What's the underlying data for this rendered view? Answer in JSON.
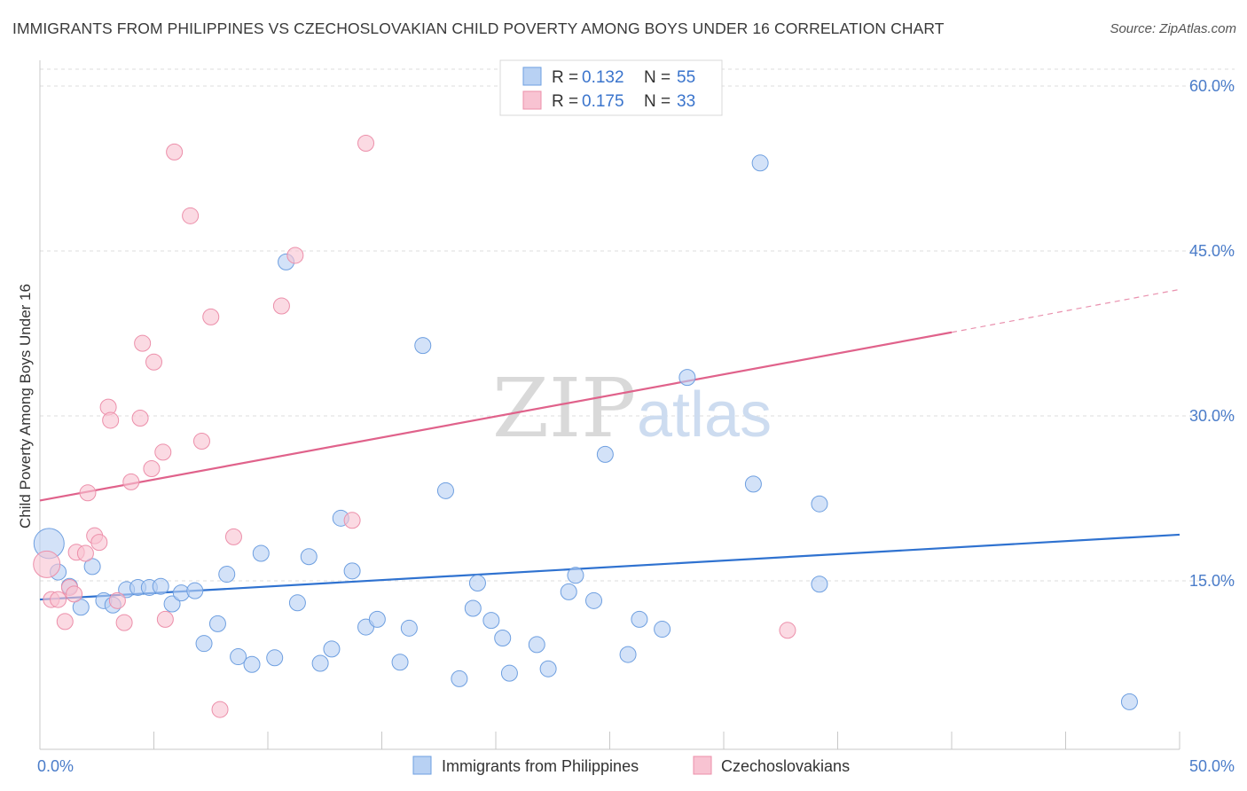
{
  "title": "IMMIGRANTS FROM PHILIPPINES VS CZECHOSLOVAKIAN CHILD POVERTY AMONG BOYS UNDER 16 CORRELATION CHART",
  "source": "Source: ZipAtlas.com",
  "watermark": {
    "part1": "ZIP",
    "part2": "atlas"
  },
  "colors": {
    "blue_fill": "#b8d1f3",
    "blue_stroke": "#6e9fe0",
    "blue_line": "#2f72d0",
    "pink_fill": "#f8c3d2",
    "pink_stroke": "#ec8faa",
    "pink_line": "#e0628b",
    "grid": "#dcdcdc",
    "tick_text": "#4a7cc9"
  },
  "legend": {
    "rows": [
      {
        "r_label": "R =",
        "r_value": "0.132",
        "n_label": "N =",
        "n_value": "55"
      },
      {
        "r_label": "R =",
        "r_value": "0.175",
        "n_label": "N =",
        "n_value": "33"
      }
    ]
  },
  "chart_data": {
    "type": "scatter",
    "title": "IMMIGRANTS FROM PHILIPPINES VS CZECHOSLOVAKIAN CHILD POVERTY AMONG BOYS UNDER 16 CORRELATION CHART",
    "xlabel": "",
    "ylabel": "Child Poverty Among Boys Under 16",
    "xlim": [
      0,
      50
    ],
    "ylim": [
      0,
      60
    ],
    "x_tick_labels": [
      "0.0%",
      "50.0%"
    ],
    "y_tick_labels": [
      "15.0%",
      "30.0%",
      "45.0%",
      "60.0%"
    ],
    "y_ticks": [
      15,
      30,
      45,
      60
    ],
    "x_ticks_minor": [
      0,
      5,
      10,
      15,
      20,
      25,
      30,
      35,
      40,
      45,
      50
    ],
    "grid": true,
    "legend_position": "top-center",
    "series": [
      {
        "name": "Immigrants from Philippines",
        "color": "blue",
        "R": 0.132,
        "N": 55,
        "trend": {
          "x": [
            0,
            50
          ],
          "y": [
            13.3,
            19.2
          ]
        },
        "points": [
          [
            0.4,
            18.4
          ],
          [
            0.8,
            15.8
          ],
          [
            1.3,
            14.5
          ],
          [
            1.8,
            12.6
          ],
          [
            2.3,
            16.3
          ],
          [
            2.8,
            13.2
          ],
          [
            3.2,
            12.8
          ],
          [
            3.8,
            14.2
          ],
          [
            4.3,
            14.4
          ],
          [
            4.8,
            14.4
          ],
          [
            5.3,
            14.5
          ],
          [
            5.8,
            12.9
          ],
          [
            6.2,
            13.9
          ],
          [
            6.8,
            14.1
          ],
          [
            7.2,
            9.3
          ],
          [
            7.8,
            11.1
          ],
          [
            8.2,
            15.6
          ],
          [
            8.7,
            8.1
          ],
          [
            9.3,
            7.4
          ],
          [
            9.7,
            17.5
          ],
          [
            10.3,
            8.0
          ],
          [
            10.8,
            44.0
          ],
          [
            11.3,
            13.0
          ],
          [
            11.8,
            17.2
          ],
          [
            12.3,
            7.5
          ],
          [
            12.8,
            8.8
          ],
          [
            13.2,
            20.7
          ],
          [
            13.7,
            15.9
          ],
          [
            14.3,
            10.8
          ],
          [
            14.8,
            11.5
          ],
          [
            15.8,
            7.6
          ],
          [
            16.2,
            10.7
          ],
          [
            16.8,
            36.4
          ],
          [
            17.8,
            23.2
          ],
          [
            18.4,
            6.1
          ],
          [
            19.0,
            12.5
          ],
          [
            19.2,
            14.8
          ],
          [
            19.8,
            11.4
          ],
          [
            20.3,
            9.8
          ],
          [
            20.6,
            6.6
          ],
          [
            21.8,
            9.2
          ],
          [
            22.3,
            7.0
          ],
          [
            23.2,
            14.0
          ],
          [
            23.5,
            15.5
          ],
          [
            24.3,
            13.2
          ],
          [
            24.8,
            26.5
          ],
          [
            25.8,
            8.3
          ],
          [
            26.3,
            11.5
          ],
          [
            27.3,
            10.6
          ],
          [
            28.4,
            33.5
          ],
          [
            31.6,
            53.0
          ],
          [
            31.3,
            23.8
          ],
          [
            34.2,
            22.0
          ],
          [
            34.2,
            14.7
          ],
          [
            47.8,
            4.0
          ]
        ]
      },
      {
        "name": "Czechoslovakians",
        "color": "pink",
        "R": 0.175,
        "N": 33,
        "trend": {
          "x": [
            0,
            40
          ],
          "y": [
            22.3,
            37.6
          ]
        },
        "trend_dashed": {
          "x": [
            40,
            50
          ],
          "y": [
            37.6,
            41.5
          ]
        },
        "points": [
          [
            0.3,
            16.5
          ],
          [
            0.5,
            13.3
          ],
          [
            0.8,
            13.3
          ],
          [
            1.1,
            11.3
          ],
          [
            1.3,
            14.4
          ],
          [
            1.6,
            17.6
          ],
          [
            2.1,
            23.0
          ],
          [
            2.4,
            19.1
          ],
          [
            2.6,
            18.5
          ],
          [
            3.0,
            30.8
          ],
          [
            3.1,
            29.6
          ],
          [
            3.4,
            13.2
          ],
          [
            3.7,
            11.2
          ],
          [
            4.0,
            24.0
          ],
          [
            4.4,
            29.8
          ],
          [
            4.5,
            36.6
          ],
          [
            4.9,
            25.2
          ],
          [
            5.0,
            34.9
          ],
          [
            5.4,
            26.7
          ],
          [
            5.5,
            11.5
          ],
          [
            5.9,
            54.0
          ],
          [
            6.6,
            48.2
          ],
          [
            7.1,
            27.7
          ],
          [
            7.5,
            39.0
          ],
          [
            7.9,
            3.3
          ],
          [
            8.5,
            19.0
          ],
          [
            10.6,
            40.0
          ],
          [
            11.2,
            44.6
          ],
          [
            13.7,
            20.5
          ],
          [
            14.3,
            54.8
          ],
          [
            32.8,
            10.5
          ],
          [
            2.0,
            17.5
          ],
          [
            1.5,
            13.8
          ]
        ]
      }
    ]
  },
  "bottom_legend": [
    {
      "label": "Immigrants from Philippines",
      "color": "blue"
    },
    {
      "label": "Czechoslovakians",
      "color": "pink"
    }
  ]
}
